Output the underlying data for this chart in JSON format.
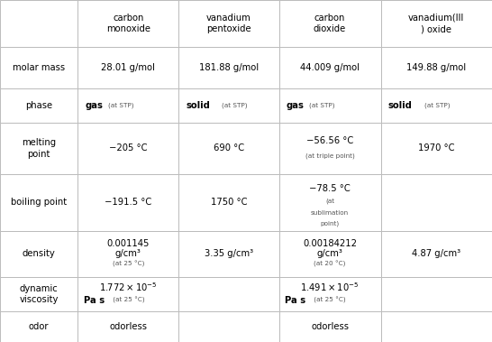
{
  "bg_color": "#ffffff",
  "border_color": "#bbbbbb",
  "text_color": "#000000",
  "small_color": "#555555",
  "col_headers": [
    "carbon\nmonoxide",
    "vanadium\npentoxide",
    "carbon\ndioxide",
    "vanadium(III\n) oxide"
  ],
  "row_headers": [
    "molar mass",
    "phase",
    "melting\npoint",
    "boiling point",
    "density",
    "dynamic\nviscosity",
    "odor"
  ],
  "col_starts": [
    0.0,
    0.158,
    0.363,
    0.567,
    0.774
  ],
  "col_ends": [
    0.158,
    0.363,
    0.567,
    0.774,
    1.0
  ],
  "row_tops": [
    1.0,
    0.862,
    0.742,
    0.64,
    0.492,
    0.325,
    0.19,
    0.09,
    0.0
  ],
  "fs_main": 7.2,
  "fs_small": 5.2,
  "lw": 0.7
}
